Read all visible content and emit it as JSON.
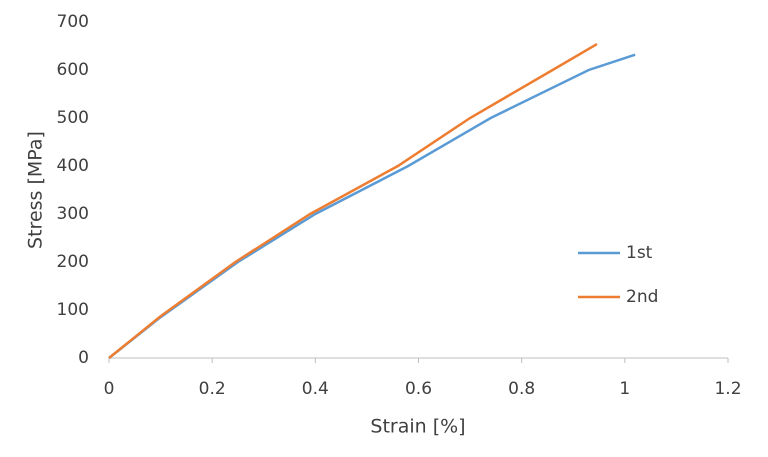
{
  "chart_data": {
    "type": "line",
    "x_label": "Strain [%]",
    "y_label": "Stress [MPa]",
    "xlim": [
      0,
      1.2
    ],
    "xticks": [
      0,
      0.2,
      0.4,
      0.6,
      0.8,
      1,
      1.2
    ],
    "ylim": [
      0,
      700
    ],
    "yticks": [
      0,
      100,
      200,
      300,
      400,
      500,
      600,
      700
    ],
    "grid": false,
    "legend": "right",
    "series": [
      {
        "name": "1st",
        "color": "#5b9bd5",
        "x": [
          0,
          0.1,
          0.25,
          0.4,
          0.58,
          0.74,
          0.93,
          1.02
        ],
        "values": [
          0,
          85,
          200,
          300,
          400,
          500,
          600,
          632
        ]
      },
      {
        "name": "2nd",
        "color": "#ed7d31",
        "x": [
          0,
          0.1,
          0.245,
          0.39,
          0.56,
          0.7,
          0.86,
          0.946
        ],
        "values": [
          0,
          87,
          200,
          300,
          400,
          500,
          600,
          654
        ]
      }
    ]
  }
}
